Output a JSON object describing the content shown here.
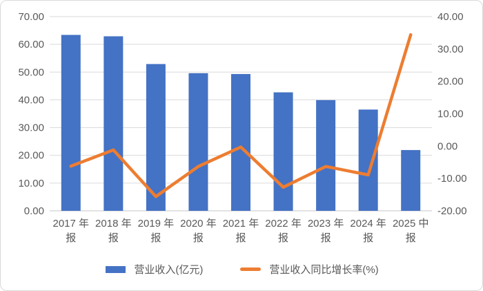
{
  "chart_data": {
    "type": "bar",
    "subtype": "combo-bar-line-dual-axis",
    "title": "",
    "categories": [
      "2017年报",
      "2018年报",
      "2019年报",
      "2020年报",
      "2021年报",
      "2022年报",
      "2023年报",
      "2024年报",
      "2025中报"
    ],
    "category_label_lines": [
      [
        "2017 年",
        "报"
      ],
      [
        "2018 年",
        "报"
      ],
      [
        "2019 年",
        "报"
      ],
      [
        "2020 年",
        "报"
      ],
      [
        "2021 年",
        "报"
      ],
      [
        "2022 年",
        "报"
      ],
      [
        "2023 年",
        "报"
      ],
      [
        "2024 年",
        "报"
      ],
      [
        "2025 中",
        "报"
      ]
    ],
    "series": [
      {
        "name": "营业收入(亿元)",
        "type": "bar",
        "axis": "left",
        "color": "#4472C4",
        "values": [
          63.4,
          62.9,
          52.9,
          49.6,
          49.3,
          42.7,
          39.9,
          36.5,
          21.9
        ]
      },
      {
        "name": "营业收入同比增长率(%)",
        "type": "line",
        "axis": "right",
        "color": "#ED7D31",
        "values": [
          -6.2,
          -1.2,
          -15.6,
          -6.3,
          -0.3,
          -12.7,
          -6.3,
          -8.9,
          34.4
        ]
      }
    ],
    "left_axis": {
      "min": 0,
      "max": 70,
      "step": 10,
      "tick_labels": [
        "70.00",
        "60.00",
        "50.00",
        "40.00",
        "30.00",
        "20.00",
        "10.00",
        "0.00"
      ]
    },
    "right_axis": {
      "min": -20,
      "max": 40,
      "step": 10,
      "tick_labels": [
        "40.00",
        "30.00",
        "20.00",
        "10.00",
        "0.00",
        "-10.00",
        "-20.00"
      ]
    },
    "grid": true,
    "legend_position": "bottom"
  },
  "legend": {
    "items": [
      {
        "label": "营业收入(亿元)",
        "color": "#4472C4",
        "shape": "rect"
      },
      {
        "label": "营业收入同比增长率(%)",
        "color": "#ED7D31",
        "shape": "line"
      }
    ]
  },
  "colors": {
    "bar": "#4472C4",
    "line": "#ED7D31",
    "gridline": "#D9D9D9",
    "axis_line": "#C6C6C6",
    "tick_text": "#595959",
    "frame_border": "#D9D9D9",
    "background": "#FFFFFF"
  }
}
